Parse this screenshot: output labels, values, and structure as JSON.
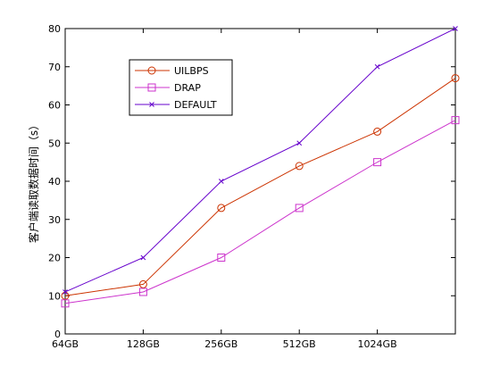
{
  "chart_data": {
    "type": "line",
    "title": "",
    "xlabel": "",
    "ylabel": "客户端读取数据时间（s）",
    "categories": [
      "64GB",
      "128GB",
      "256GB",
      "512GB",
      "1024GB",
      ""
    ],
    "ylim": [
      0,
      80
    ],
    "yticks": [
      0,
      10,
      20,
      30,
      40,
      50,
      60,
      70,
      80
    ],
    "grid": false,
    "legend_position": "top-left",
    "series": [
      {
        "name": "UILBPS",
        "values": [
          10,
          13,
          33,
          44,
          53,
          67
        ],
        "color": "#cc3300",
        "marker": "circle"
      },
      {
        "name": "DRAP",
        "values": [
          8,
          11,
          20,
          33,
          45,
          56
        ],
        "color": "#cc33cc",
        "marker": "square"
      },
      {
        "name": "DEFAULT",
        "values": [
          11,
          20,
          40,
          50,
          70,
          80
        ],
        "color": "#6600cc",
        "marker": "x"
      }
    ]
  }
}
